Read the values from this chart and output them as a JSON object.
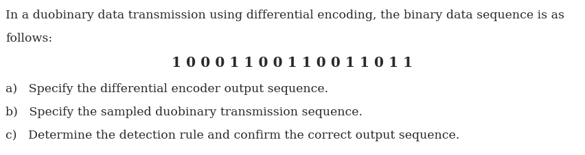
{
  "line1": "In a duobinary data transmission using differential encoding, the binary data sequence is as",
  "line2": "follows:",
  "sequence": "1 0 0 0 1 1 0 0 1 1 0 0 1 1 0 1 1",
  "item_a": "a)   Specify the differential encoder output sequence.",
  "item_b": "b)   Specify the sampled duobinary transmission sequence.",
  "item_c": "c)   Determine the detection rule and confirm the correct output sequence.",
  "bg_color": "#ffffff",
  "text_color": "#2a2a2a",
  "font_size_body": 12.5,
  "font_size_seq": 14.5,
  "fig_width": 8.52,
  "fig_height": 2.27,
  "dpi": 100
}
